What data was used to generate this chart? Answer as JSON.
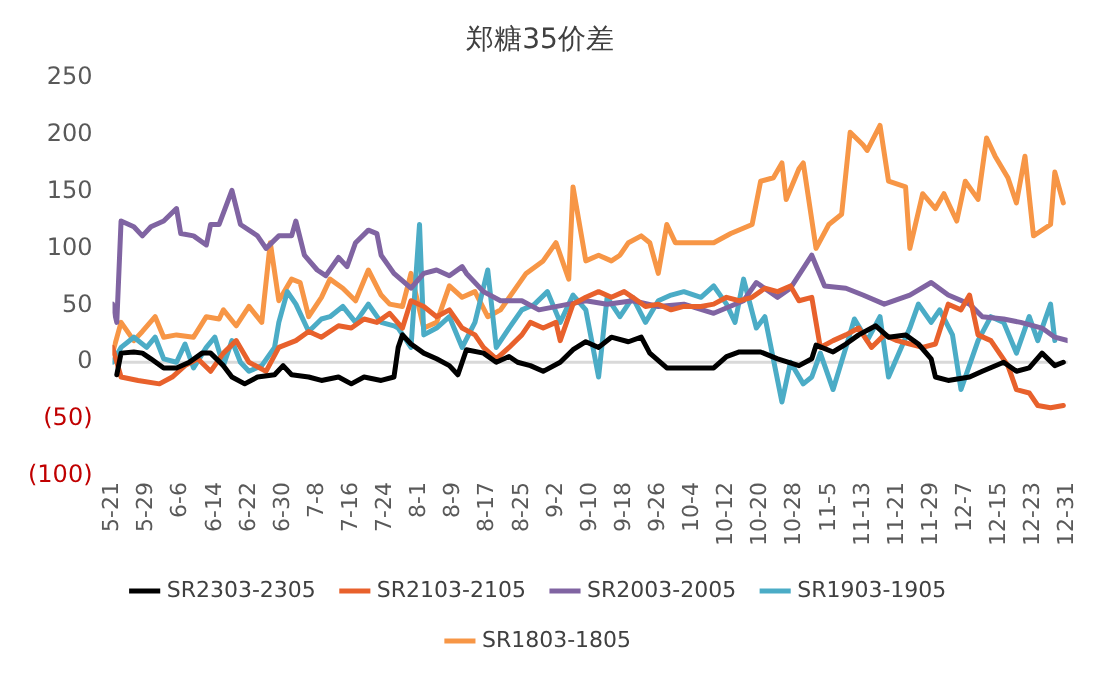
{
  "chart_data": {
    "type": "line",
    "title": "郑糖35价差",
    "legend": "bottom",
    "xlim": [
      "--05-21",
      "--12-31"
    ],
    "xticks": [
      {
        "value": "--05-21",
        "label": "5-21"
      },
      {
        "value": "--05-29",
        "label": "5-29"
      },
      {
        "value": "--06-06",
        "label": "6-6"
      },
      {
        "value": "--06-14",
        "label": "6-14"
      },
      {
        "value": "--06-22",
        "label": "6-22"
      },
      {
        "value": "--06-30",
        "label": "6-30"
      },
      {
        "value": "--07-08",
        "label": "7-8"
      },
      {
        "value": "--07-16",
        "label": "7-16"
      },
      {
        "value": "--07-24",
        "label": "7-24"
      },
      {
        "value": "--08-01",
        "label": "8-1"
      },
      {
        "value": "--08-09",
        "label": "8-9"
      },
      {
        "value": "--08-17",
        "label": "8-17"
      },
      {
        "value": "--08-25",
        "label": "8-25"
      },
      {
        "value": "--09-02",
        "label": "9-2"
      },
      {
        "value": "--09-10",
        "label": "9-10"
      },
      {
        "value": "--09-18",
        "label": "9-18"
      },
      {
        "value": "--09-26",
        "label": "9-26"
      },
      {
        "value": "--10-04",
        "label": "10-4"
      },
      {
        "value": "--10-12",
        "label": "10-12"
      },
      {
        "value": "--10-20",
        "label": "10-20"
      },
      {
        "value": "--10-28",
        "label": "10-28"
      },
      {
        "value": "--11-05",
        "label": "11-5"
      },
      {
        "value": "--11-13",
        "label": "11-13"
      },
      {
        "value": "--11-21",
        "label": "11-21"
      },
      {
        "value": "--11-29",
        "label": "11-29"
      },
      {
        "value": "--12-07",
        "label": "12-7"
      },
      {
        "value": "--12-15",
        "label": "12-15"
      },
      {
        "value": "--12-23",
        "label": "12-23"
      },
      {
        "value": "--12-31",
        "label": "12-31"
      }
    ],
    "ylim": [
      -100,
      250
    ],
    "yticks": [
      250,
      200,
      150,
      100,
      50,
      0,
      {
        "value": -50,
        "label": "(50)"
      },
      {
        "value": -100,
        "label": "(100)"
      }
    ],
    "series": [
      {
        "name": "SR2303-2305",
        "color": "#000000",
        "x": [
          "--05-22",
          "--05-23",
          "--05-26",
          "--05-28",
          "--05-30",
          "--06-02",
          "--06-05",
          "--06-08",
          "--06-11",
          "--06-13",
          "--06-16",
          "--06-18",
          "--06-21",
          "--06-24",
          "--06-28",
          "--06-30",
          "--07-02",
          "--07-06",
          "--07-09",
          "--07-13",
          "--07-16",
          "--07-19",
          "--07-23",
          "--07-26",
          "--07-27",
          "--07-28",
          "--07-30",
          "--08-02",
          "--08-05",
          "--08-08",
          "--08-10",
          "--08-12",
          "--08-16",
          "--08-19",
          "--08-22",
          "--08-24",
          "--08-27",
          "--08-30",
          "--09-03",
          "--09-06",
          "--09-09",
          "--09-12",
          "--09-15",
          "--09-19",
          "--09-22",
          "--09-24",
          "--09-28",
          "--10-03",
          "--10-09",
          "--10-12",
          "--10-15",
          "--10-20",
          "--10-24",
          "--10-29",
          "--11-01",
          "--11-02",
          "--11-06",
          "--11-09",
          "--11-12",
          "--11-16",
          "--11-19",
          "--11-23",
          "--11-26",
          "--11-29",
          "--11-30",
          "--12-03",
          "--12-08",
          "--12-11",
          "--12-16",
          "--12-19",
          "--12-22",
          "--12-25",
          "--12-28",
          "--12-30"
        ],
        "values": [
          -11,
          8,
          9,
          8,
          3,
          -5,
          -5,
          0,
          8,
          8,
          -3,
          -13,
          -19,
          -13,
          -11,
          -3,
          -11,
          -13,
          -16,
          -13,
          -19,
          -13,
          -16,
          -13,
          13,
          24,
          16,
          8,
          3,
          -3,
          -11,
          11,
          8,
          0,
          5,
          0,
          -3,
          -8,
          0,
          11,
          18,
          13,
          22,
          18,
          22,
          8,
          -5,
          -5,
          -5,
          5,
          9,
          9,
          3,
          -3,
          3,
          15,
          9,
          16,
          24,
          32,
          22,
          24,
          16,
          3,
          -13,
          -16,
          -13,
          -8,
          0,
          -8,
          -5,
          8,
          -3,
          0
        ]
      },
      {
        "name": "SR2103-2105",
        "color": "#e8612c",
        "x": [
          "--05-21",
          "--05-23",
          "--05-27",
          "--06-01",
          "--06-04",
          "--06-07",
          "--06-10",
          "--06-13",
          "--06-16",
          "--06-19",
          "--06-22",
          "--06-26",
          "--06-29",
          "--07-03",
          "--07-06",
          "--07-09",
          "--07-13",
          "--07-16",
          "--07-19",
          "--07-22",
          "--07-25",
          "--07-28",
          "--07-30",
          "--08-02",
          "--08-05",
          "--08-08",
          "--08-11",
          "--08-14",
          "--08-16",
          "--08-19",
          "--08-22",
          "--08-25",
          "--08-27",
          "--08-30",
          "--09-02",
          "--09-03",
          "--09-06",
          "--09-09",
          "--09-12",
          "--09-15",
          "--09-18",
          "--09-20",
          "--09-23",
          "--09-26",
          "--09-29",
          "--10-02",
          "--10-06",
          "--10-09",
          "--10-12",
          "--10-15",
          "--10-18",
          "--10-21",
          "--10-24",
          "--10-27",
          "--10-29",
          "--11-01",
          "--11-03",
          "--11-06",
          "--11-09",
          "--11-12",
          "--11-15",
          "--11-18",
          "--11-21",
          "--11-24",
          "--11-27",
          "--11-30",
          "--12-03",
          "--12-06",
          "--12-08",
          "--12-10",
          "--12-13",
          "--12-17",
          "--12-19",
          "--12-22",
          "--12-24",
          "--12-27",
          "--12-30"
        ],
        "values": [
          13,
          -13,
          -16,
          -19,
          -13,
          -3,
          3,
          -8,
          8,
          19,
          0,
          -8,
          13,
          19,
          27,
          22,
          32,
          30,
          38,
          35,
          43,
          30,
          54,
          49,
          40,
          46,
          30,
          24,
          13,
          3,
          13,
          24,
          35,
          30,
          35,
          19,
          51,
          57,
          62,
          57,
          62,
          57,
          49,
          51,
          46,
          49,
          49,
          51,
          57,
          54,
          57,
          65,
          62,
          67,
          54,
          57,
          13,
          19,
          24,
          30,
          13,
          24,
          19,
          16,
          13,
          16,
          51,
          46,
          59,
          24,
          19,
          -3,
          -24,
          -27,
          -38,
          -40,
          -38
        ]
      },
      {
        "name": "SR2003-2005",
        "color": "#8064a2",
        "x": [
          "--05-21",
          "--05-22",
          "--05-23",
          "--05-26",
          "--05-28",
          "--05-30",
          "--06-02",
          "--06-05",
          "--06-06",
          "--06-09",
          "--06-12",
          "--06-13",
          "--06-15",
          "--06-18",
          "--06-20",
          "--06-24",
          "--06-26",
          "--06-29",
          "--07-02",
          "--07-03",
          "--07-05",
          "--07-08",
          "--07-10",
          "--07-13",
          "--07-15",
          "--07-17",
          "--07-20",
          "--07-22",
          "--07-23",
          "--07-26",
          "--07-30",
          "--08-02",
          "--08-05",
          "--08-08",
          "--08-11",
          "--08-12",
          "--08-16",
          "--08-20",
          "--08-25",
          "--08-29",
          "--09-05",
          "--09-09",
          "--09-14",
          "--09-20",
          "--09-26",
          "--10-02",
          "--10-09",
          "--10-16",
          "--10-19",
          "--10-24",
          "--10-27",
          "--11-01",
          "--11-04",
          "--11-09",
          "--11-13",
          "--11-18",
          "--11-24",
          "--11-29",
          "--12-03",
          "--12-08",
          "--12-11",
          "--12-16",
          "--12-20",
          "--12-25",
          "--12-28",
          "--12-31"
        ],
        "values": [
          51,
          35,
          124,
          119,
          111,
          119,
          124,
          135,
          113,
          111,
          103,
          121,
          121,
          151,
          121,
          111,
          100,
          111,
          111,
          124,
          94,
          81,
          76,
          92,
          84,
          105,
          116,
          113,
          94,
          78,
          65,
          78,
          81,
          76,
          84,
          78,
          62,
          54,
          54,
          46,
          51,
          54,
          51,
          54,
          49,
          51,
          43,
          54,
          70,
          57,
          65,
          94,
          67,
          65,
          59,
          51,
          59,
          70,
          59,
          51,
          40,
          38,
          35,
          30,
          22,
          19
        ]
      },
      {
        "name": "SR1903-1905",
        "color": "#4bacc6",
        "x": [
          "--05-21",
          "--05-23",
          "--05-26",
          "--05-29",
          "--05-31",
          "--06-02",
          "--06-05",
          "--06-07",
          "--06-09",
          "--06-12",
          "--06-14",
          "--06-16",
          "--06-18",
          "--06-20",
          "--06-22",
          "--06-25",
          "--06-28",
          "--06-29",
          "--07-01",
          "--07-03",
          "--07-06",
          "--07-09",
          "--07-11",
          "--07-14",
          "--07-17",
          "--07-20",
          "--07-23",
          "--07-26",
          "--07-27",
          "--07-30",
          "--08-01",
          "--08-02",
          "--08-05",
          "--08-08",
          "--08-11",
          "--08-14",
          "--08-17",
          "--08-19",
          "--08-22",
          "--08-25",
          "--08-28",
          "--08-31",
          "--09-03",
          "--09-06",
          "--09-09",
          "--09-12",
          "--09-14",
          "--09-17",
          "--09-20",
          "--09-23",
          "--09-26",
          "--09-29",
          "--10-02",
          "--10-06",
          "--10-09",
          "--10-12",
          "--10-14",
          "--10-16",
          "--10-19",
          "--10-21",
          "--10-25",
          "--10-27",
          "--10-30",
          "--11-01",
          "--11-03",
          "--11-06",
          "--11-09",
          "--11-11",
          "--11-14",
          "--11-17",
          "--11-19",
          "--11-22",
          "--11-24",
          "--11-26",
          "--11-29",
          "--12-01",
          "--12-04",
          "--12-06",
          "--12-10",
          "--12-13",
          "--12-16",
          "--12-19",
          "--12-22",
          "--12-24",
          "--12-27",
          "--12-28"
        ],
        "values": [
          0,
          13,
          22,
          13,
          22,
          3,
          0,
          16,
          -5,
          13,
          22,
          -3,
          19,
          0,
          -8,
          -3,
          13,
          35,
          62,
          51,
          27,
          38,
          40,
          49,
          35,
          51,
          35,
          32,
          30,
          13,
          121,
          24,
          30,
          40,
          13,
          35,
          81,
          13,
          30,
          46,
          51,
          62,
          35,
          59,
          46,
          -13,
          57,
          40,
          57,
          35,
          54,
          59,
          62,
          57,
          67,
          51,
          35,
          73,
          30,
          40,
          -35,
          0,
          -19,
          -13,
          8,
          -24,
          13,
          38,
          19,
          40,
          -13,
          13,
          30,
          51,
          35,
          46,
          24,
          -24,
          19,
          40,
          35,
          8,
          40,
          19,
          51,
          19
        ]
      },
      {
        "name": "SR1803-1805",
        "color": "#f79646",
        "x": [
          "--05-21",
          "--05-23",
          "--05-26",
          "--05-28",
          "--05-31",
          "--06-02",
          "--06-05",
          "--06-09",
          "--06-12",
          "--06-15",
          "--06-16",
          "--06-19",
          "--06-22",
          "--06-25",
          "--06-27",
          "--06-29",
          "--07-02",
          "--07-04",
          "--07-06",
          "--07-09",
          "--07-11",
          "--07-14",
          "--07-17",
          "--07-20",
          "--07-23",
          "--07-25",
          "--07-28",
          "--07-30",
          "--08-02",
          "--08-05",
          "--08-08",
          "--08-11",
          "--08-14",
          "--08-17",
          "--08-20",
          "--08-23",
          "--08-26",
          "--08-30",
          "--09-02",
          "--09-05",
          "--09-06",
          "--09-09",
          "--09-12",
          "--09-15",
          "--09-17",
          "--09-19",
          "--09-22",
          "--09-24",
          "--09-26",
          "--09-28",
          "--09-30",
          "--10-06",
          "--10-09",
          "--10-13",
          "--10-18",
          "--10-20",
          "--10-23",
          "--10-25",
          "--10-26",
          "--10-29",
          "--10-30",
          "--11-02",
          "--11-05",
          "--11-08",
          "--11-10",
          "--11-13",
          "--11-14",
          "--11-17",
          "--11-19",
          "--11-23",
          "--11-24",
          "--11-27",
          "--11-30",
          "--12-02",
          "--12-05",
          "--12-07",
          "--12-10",
          "--12-12",
          "--12-14",
          "--12-17",
          "--12-19",
          "--12-21",
          "--12-23",
          "--12-27",
          "--12-28",
          "--12-30"
        ],
        "values": [
          8,
          35,
          19,
          27,
          40,
          22,
          24,
          22,
          40,
          38,
          46,
          32,
          49,
          35,
          105,
          54,
          73,
          70,
          40,
          57,
          73,
          65,
          54,
          81,
          59,
          51,
          49,
          78,
          30,
          35,
          67,
          57,
          62,
          40,
          46,
          62,
          78,
          89,
          105,
          73,
          154,
          89,
          94,
          89,
          94,
          105,
          111,
          105,
          78,
          121,
          105,
          105,
          105,
          113,
          121,
          159,
          162,
          175,
          143,
          170,
          175,
          100,
          121,
          130,
          202,
          191,
          186,
          208,
          159,
          154,
          100,
          148,
          135,
          148,
          124,
          159,
          143,
          197,
          181,
          162,
          140,
          181,
          111,
          121,
          167,
          140
        ]
      }
    ]
  }
}
